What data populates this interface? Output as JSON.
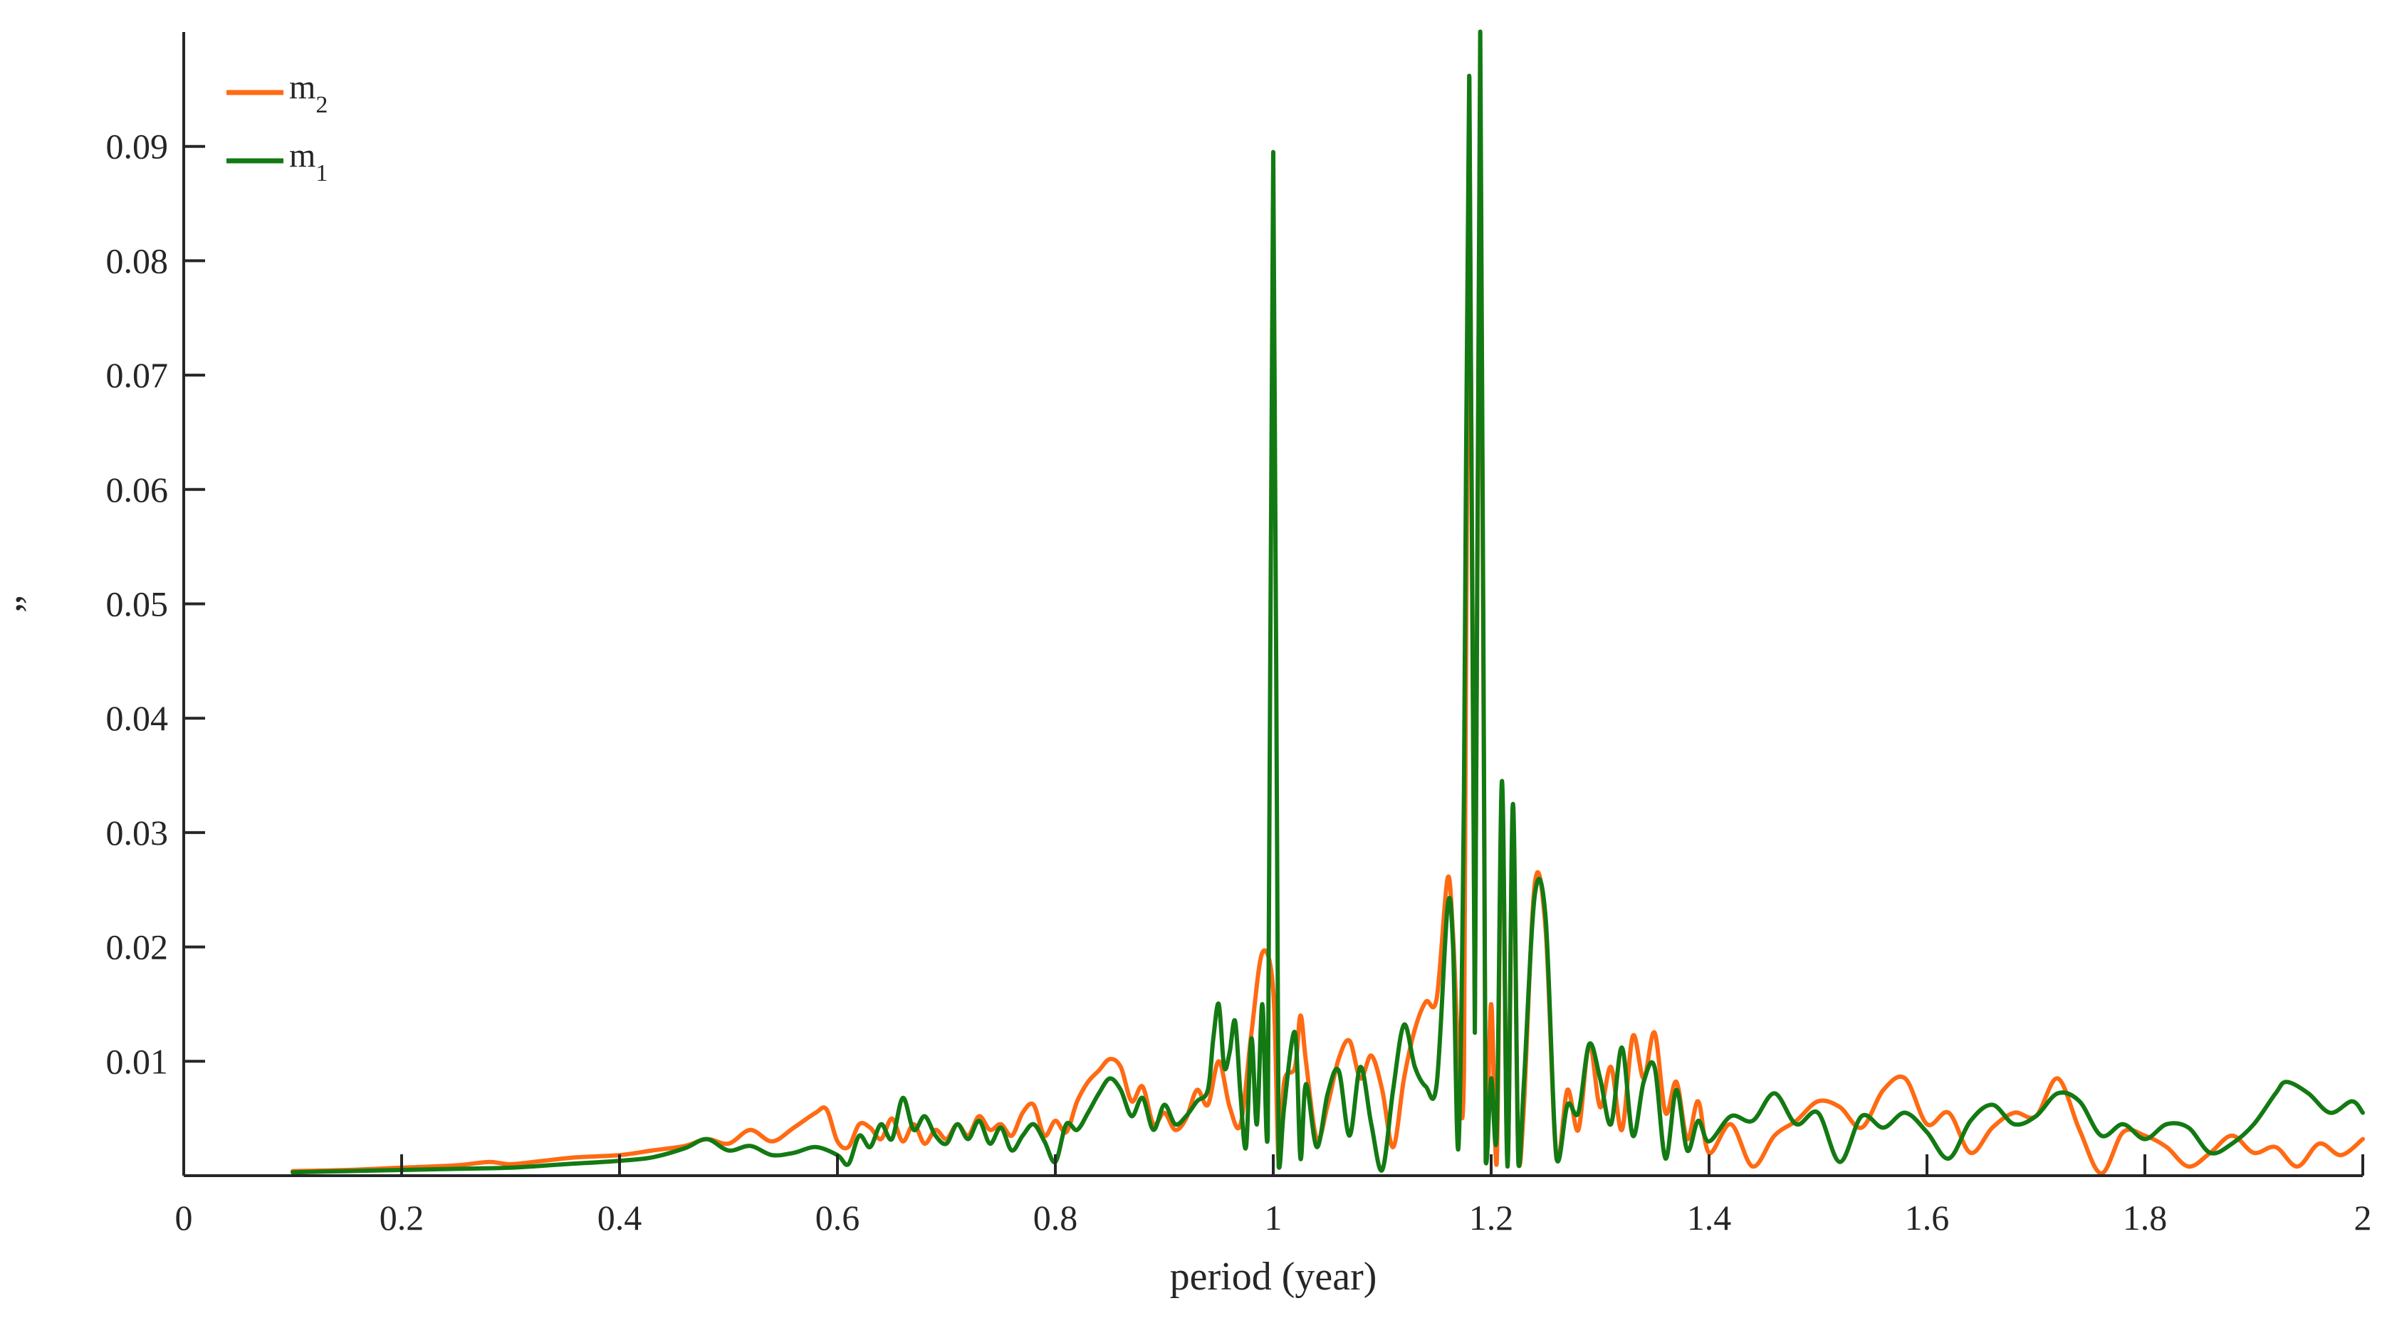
{
  "chart_data": {
    "type": "line",
    "xlabel": "period (year)",
    "ylabel": "”",
    "xlim": [
      0,
      2
    ],
    "ylim": [
      0,
      0.1
    ],
    "x_ticks": [
      0,
      0.2,
      0.4,
      0.6,
      0.8,
      1,
      1.2,
      1.4,
      1.6,
      1.8,
      2
    ],
    "x_tick_labels": [
      "0",
      "0.2",
      "0.4",
      "0.6",
      "0.8",
      "1",
      "1.2",
      "1.4",
      "1.6",
      "1.8",
      "2"
    ],
    "y_ticks": [
      0.01,
      0.02,
      0.03,
      0.04,
      0.05,
      0.06,
      0.07,
      0.08,
      0.09
    ],
    "y_tick_labels": [
      "0.01",
      "0.02",
      "0.03",
      "0.04",
      "0.05",
      "0.06",
      "0.07",
      "0.08",
      "0.09"
    ],
    "grid": false,
    "legend_position": "top-left",
    "legend": [
      {
        "base": "m",
        "sub": "2",
        "color": "#ff6a13"
      },
      {
        "base": "m",
        "sub": "1",
        "color": "#137a13"
      }
    ],
    "series": [
      {
        "name": "m2",
        "color": "#ff6a13",
        "points": [
          [
            0.1,
            0.0004
          ],
          [
            0.15,
            0.0005
          ],
          [
            0.2,
            0.0007
          ],
          [
            0.25,
            0.0009
          ],
          [
            0.28,
            0.0012
          ],
          [
            0.3,
            0.001
          ],
          [
            0.33,
            0.0013
          ],
          [
            0.36,
            0.0016
          ],
          [
            0.4,
            0.0018
          ],
          [
            0.43,
            0.0022
          ],
          [
            0.46,
            0.0026
          ],
          [
            0.48,
            0.0032
          ],
          [
            0.5,
            0.0028
          ],
          [
            0.52,
            0.004
          ],
          [
            0.54,
            0.003
          ],
          [
            0.56,
            0.0042
          ],
          [
            0.58,
            0.0055
          ],
          [
            0.59,
            0.0058
          ],
          [
            0.6,
            0.003
          ],
          [
            0.61,
            0.0025
          ],
          [
            0.62,
            0.0045
          ],
          [
            0.63,
            0.0042
          ],
          [
            0.64,
            0.0032
          ],
          [
            0.65,
            0.005
          ],
          [
            0.66,
            0.003
          ],
          [
            0.67,
            0.0045
          ],
          [
            0.68,
            0.0028
          ],
          [
            0.69,
            0.004
          ],
          [
            0.7,
            0.0032
          ],
          [
            0.71,
            0.0045
          ],
          [
            0.72,
            0.0035
          ],
          [
            0.73,
            0.0052
          ],
          [
            0.74,
            0.004
          ],
          [
            0.75,
            0.0045
          ],
          [
            0.76,
            0.0035
          ],
          [
            0.77,
            0.0055
          ],
          [
            0.78,
            0.0062
          ],
          [
            0.79,
            0.0035
          ],
          [
            0.8,
            0.0048
          ],
          [
            0.81,
            0.0038
          ],
          [
            0.82,
            0.0065
          ],
          [
            0.83,
            0.0082
          ],
          [
            0.84,
            0.0092
          ],
          [
            0.85,
            0.0102
          ],
          [
            0.86,
            0.0095
          ],
          [
            0.87,
            0.0065
          ],
          [
            0.88,
            0.0078
          ],
          [
            0.89,
            0.0045
          ],
          [
            0.9,
            0.0055
          ],
          [
            0.91,
            0.004
          ],
          [
            0.92,
            0.005
          ],
          [
            0.93,
            0.0075
          ],
          [
            0.94,
            0.0062
          ],
          [
            0.95,
            0.01
          ],
          [
            0.96,
            0.006
          ],
          [
            0.97,
            0.0045
          ],
          [
            0.98,
            0.0125
          ],
          [
            0.99,
            0.0195
          ],
          [
            1.0,
            0.0162
          ],
          [
            1.005,
            0.0012
          ],
          [
            1.01,
            0.0082
          ],
          [
            1.02,
            0.0095
          ],
          [
            1.025,
            0.014
          ],
          [
            1.03,
            0.01
          ],
          [
            1.04,
            0.0032
          ],
          [
            1.05,
            0.0062
          ],
          [
            1.06,
            0.0102
          ],
          [
            1.07,
            0.0118
          ],
          [
            1.08,
            0.0085
          ],
          [
            1.09,
            0.0105
          ],
          [
            1.1,
            0.0075
          ],
          [
            1.11,
            0.0025
          ],
          [
            1.12,
            0.0085
          ],
          [
            1.13,
            0.0128
          ],
          [
            1.14,
            0.0152
          ],
          [
            1.15,
            0.0155
          ],
          [
            1.16,
            0.026
          ],
          [
            1.165,
            0.021
          ],
          [
            1.17,
            0.0108
          ],
          [
            1.175,
            0.009
          ],
          [
            1.18,
            0.0935
          ],
          [
            1.185,
            0.0138
          ],
          [
            1.19,
            0.0955
          ],
          [
            1.195,
            0.0012
          ],
          [
            1.2,
            0.015
          ],
          [
            1.205,
            0.001
          ],
          [
            1.21,
            0.0335
          ],
          [
            1.215,
            0.0012
          ],
          [
            1.22,
            0.031
          ],
          [
            1.225,
            0.0012
          ],
          [
            1.23,
            0.006
          ],
          [
            1.24,
            0.0255
          ],
          [
            1.25,
            0.0215
          ],
          [
            1.26,
            0.0015
          ],
          [
            1.27,
            0.0075
          ],
          [
            1.28,
            0.004
          ],
          [
            1.29,
            0.0115
          ],
          [
            1.3,
            0.006
          ],
          [
            1.31,
            0.0095
          ],
          [
            1.32,
            0.004
          ],
          [
            1.33,
            0.0122
          ],
          [
            1.34,
            0.0085
          ],
          [
            1.35,
            0.0125
          ],
          [
            1.36,
            0.0055
          ],
          [
            1.37,
            0.0082
          ],
          [
            1.38,
            0.0032
          ],
          [
            1.39,
            0.0065
          ],
          [
            1.4,
            0.002
          ],
          [
            1.42,
            0.0045
          ],
          [
            1.44,
            0.0008
          ],
          [
            1.46,
            0.0035
          ],
          [
            1.48,
            0.0048
          ],
          [
            1.5,
            0.0065
          ],
          [
            1.52,
            0.006
          ],
          [
            1.54,
            0.0042
          ],
          [
            1.56,
            0.0075
          ],
          [
            1.58,
            0.0085
          ],
          [
            1.6,
            0.0045
          ],
          [
            1.62,
            0.0055
          ],
          [
            1.64,
            0.002
          ],
          [
            1.66,
            0.0042
          ],
          [
            1.68,
            0.0055
          ],
          [
            1.7,
            0.0052
          ],
          [
            1.72,
            0.0085
          ],
          [
            1.74,
            0.004
          ],
          [
            1.76,
            0.0002
          ],
          [
            1.78,
            0.0038
          ],
          [
            1.8,
            0.0035
          ],
          [
            1.82,
            0.0025
          ],
          [
            1.84,
            0.0008
          ],
          [
            1.86,
            0.002
          ],
          [
            1.88,
            0.0035
          ],
          [
            1.9,
            0.002
          ],
          [
            1.92,
            0.0025
          ],
          [
            1.94,
            0.0008
          ],
          [
            1.96,
            0.0028
          ],
          [
            1.98,
            0.0018
          ],
          [
            2.0,
            0.0032
          ]
        ]
      },
      {
        "name": "m1",
        "color": "#137a13",
        "points": [
          [
            0.1,
            0.0003
          ],
          [
            0.15,
            0.0004
          ],
          [
            0.2,
            0.0005
          ],
          [
            0.25,
            0.0006
          ],
          [
            0.3,
            0.0007
          ],
          [
            0.35,
            0.001
          ],
          [
            0.4,
            0.0013
          ],
          [
            0.43,
            0.0016
          ],
          [
            0.46,
            0.0024
          ],
          [
            0.48,
            0.0032
          ],
          [
            0.5,
            0.0022
          ],
          [
            0.52,
            0.0026
          ],
          [
            0.54,
            0.0018
          ],
          [
            0.56,
            0.002
          ],
          [
            0.58,
            0.0025
          ],
          [
            0.6,
            0.0018
          ],
          [
            0.61,
            0.001
          ],
          [
            0.62,
            0.0035
          ],
          [
            0.63,
            0.0025
          ],
          [
            0.64,
            0.0045
          ],
          [
            0.65,
            0.0032
          ],
          [
            0.66,
            0.0068
          ],
          [
            0.67,
            0.004
          ],
          [
            0.68,
            0.0052
          ],
          [
            0.69,
            0.0035
          ],
          [
            0.7,
            0.0028
          ],
          [
            0.71,
            0.0045
          ],
          [
            0.72,
            0.0032
          ],
          [
            0.73,
            0.0048
          ],
          [
            0.74,
            0.0028
          ],
          [
            0.75,
            0.0042
          ],
          [
            0.76,
            0.0022
          ],
          [
            0.77,
            0.0035
          ],
          [
            0.78,
            0.0045
          ],
          [
            0.79,
            0.003
          ],
          [
            0.8,
            0.0012
          ],
          [
            0.81,
            0.0045
          ],
          [
            0.82,
            0.004
          ],
          [
            0.83,
            0.0055
          ],
          [
            0.84,
            0.0072
          ],
          [
            0.85,
            0.0085
          ],
          [
            0.86,
            0.0075
          ],
          [
            0.87,
            0.0052
          ],
          [
            0.88,
            0.0068
          ],
          [
            0.89,
            0.004
          ],
          [
            0.9,
            0.0062
          ],
          [
            0.91,
            0.0045
          ],
          [
            0.92,
            0.0052
          ],
          [
            0.93,
            0.0065
          ],
          [
            0.94,
            0.0075
          ],
          [
            0.945,
            0.012
          ],
          [
            0.95,
            0.015
          ],
          [
            0.955,
            0.0095
          ],
          [
            0.96,
            0.0108
          ],
          [
            0.965,
            0.0135
          ],
          [
            0.97,
            0.007
          ],
          [
            0.975,
            0.0025
          ],
          [
            0.98,
            0.012
          ],
          [
            0.985,
            0.0045
          ],
          [
            0.99,
            0.015
          ],
          [
            0.995,
            0.0035
          ],
          [
            1.0,
            0.0895
          ],
          [
            1.005,
            0.0008
          ],
          [
            1.01,
            0.006
          ],
          [
            1.02,
            0.0125
          ],
          [
            1.025,
            0.0015
          ],
          [
            1.03,
            0.008
          ],
          [
            1.04,
            0.0025
          ],
          [
            1.05,
            0.0072
          ],
          [
            1.06,
            0.0092
          ],
          [
            1.07,
            0.0035
          ],
          [
            1.08,
            0.0095
          ],
          [
            1.09,
            0.0045
          ],
          [
            1.1,
            0.0005
          ],
          [
            1.11,
            0.0075
          ],
          [
            1.12,
            0.0132
          ],
          [
            1.13,
            0.0095
          ],
          [
            1.14,
            0.0078
          ],
          [
            1.15,
            0.008
          ],
          [
            1.16,
            0.0235
          ],
          [
            1.165,
            0.02
          ],
          [
            1.17,
            0.0025
          ],
          [
            1.175,
            0.0335
          ],
          [
            1.18,
            0.096
          ],
          [
            1.185,
            0.0125
          ],
          [
            1.19,
            0.1
          ],
          [
            1.195,
            0.0012
          ],
          [
            1.2,
            0.0085
          ],
          [
            1.205,
            0.0035
          ],
          [
            1.21,
            0.0345
          ],
          [
            1.215,
            0.0008
          ],
          [
            1.22,
            0.0325
          ],
          [
            1.225,
            0.001
          ],
          [
            1.23,
            0.008
          ],
          [
            1.24,
            0.0245
          ],
          [
            1.25,
            0.0225
          ],
          [
            1.26,
            0.0015
          ],
          [
            1.27,
            0.0062
          ],
          [
            1.28,
            0.0055
          ],
          [
            1.29,
            0.0115
          ],
          [
            1.3,
            0.0085
          ],
          [
            1.31,
            0.0045
          ],
          [
            1.32,
            0.0112
          ],
          [
            1.33,
            0.0035
          ],
          [
            1.34,
            0.0082
          ],
          [
            1.35,
            0.0095
          ],
          [
            1.36,
            0.0015
          ],
          [
            1.37,
            0.0075
          ],
          [
            1.38,
            0.0022
          ],
          [
            1.39,
            0.0048
          ],
          [
            1.4,
            0.003
          ],
          [
            1.42,
            0.0052
          ],
          [
            1.44,
            0.0048
          ],
          [
            1.46,
            0.0072
          ],
          [
            1.48,
            0.0045
          ],
          [
            1.5,
            0.0055
          ],
          [
            1.52,
            0.0012
          ],
          [
            1.54,
            0.0052
          ],
          [
            1.56,
            0.0042
          ],
          [
            1.58,
            0.0055
          ],
          [
            1.6,
            0.0038
          ],
          [
            1.62,
            0.0015
          ],
          [
            1.64,
            0.0048
          ],
          [
            1.66,
            0.0062
          ],
          [
            1.68,
            0.0045
          ],
          [
            1.7,
            0.0052
          ],
          [
            1.72,
            0.0072
          ],
          [
            1.74,
            0.0065
          ],
          [
            1.76,
            0.0035
          ],
          [
            1.78,
            0.0045
          ],
          [
            1.8,
            0.0032
          ],
          [
            1.82,
            0.0045
          ],
          [
            1.84,
            0.0042
          ],
          [
            1.86,
            0.002
          ],
          [
            1.88,
            0.0028
          ],
          [
            1.9,
            0.0045
          ],
          [
            1.92,
            0.0072
          ],
          [
            1.93,
            0.0082
          ],
          [
            1.95,
            0.0072
          ],
          [
            1.97,
            0.0055
          ],
          [
            1.99,
            0.0065
          ],
          [
            2.0,
            0.0055
          ]
        ]
      }
    ]
  }
}
